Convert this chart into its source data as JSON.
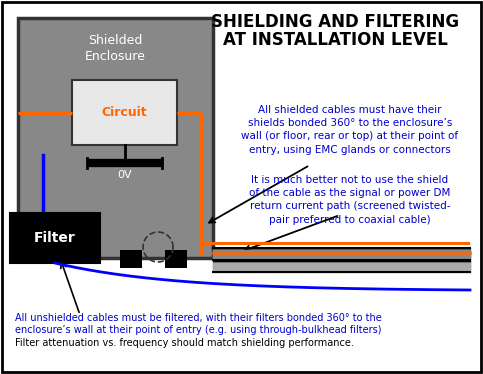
{
  "title_line1": "SHIELDING AND FILTERING",
  "title_line2": "AT INSTALLATION LEVEL",
  "bg_color": "#ffffff",
  "border_color": "#000000",
  "enclosure_fill": "#888888",
  "enclosure_edge": "#333333",
  "circuit_fill": "#e8e8e8",
  "circuit_edge": "#333333",
  "filter_fill": "#000000",
  "filter_edge": "#000000",
  "enclosure_label": "Shielded\nEnclosure",
  "circuit_label": "Circuit",
  "filter_label": "Filter",
  "ov_label": "0V",
  "annotation1": "All shielded cables must have their\nshields bonded 360° to the enclosure’s\nwall (or floor, rear or top) at their point of\nentry, using EMC glands or connectors",
  "annotation2": "It is much better not to use the shield\nof the cable as the signal or power DM\nreturn current path (screened twisted-\npair preferred to coaxial cable)",
  "annotation3_line1": "All unshielded cables must be filtered, with their filters bonded 360° to the",
  "annotation3_line2": "enclosure’s wall at their point of entry (e.g. using through-bulkhead filters)",
  "annotation3_line3": "Filter attenuation vs. frequency should match shielding performance.",
  "orange": "#FF6600",
  "blue": "#0000FF",
  "black": "#000000",
  "white": "#ffffff",
  "dark_gray": "#333333",
  "mid_gray": "#606060",
  "cable_dark": "#555555",
  "cable_mid": "#888888",
  "cable_light": "#aaaaaa",
  "ann_color": "#0000cc",
  "ann_color2": "#cc6600"
}
